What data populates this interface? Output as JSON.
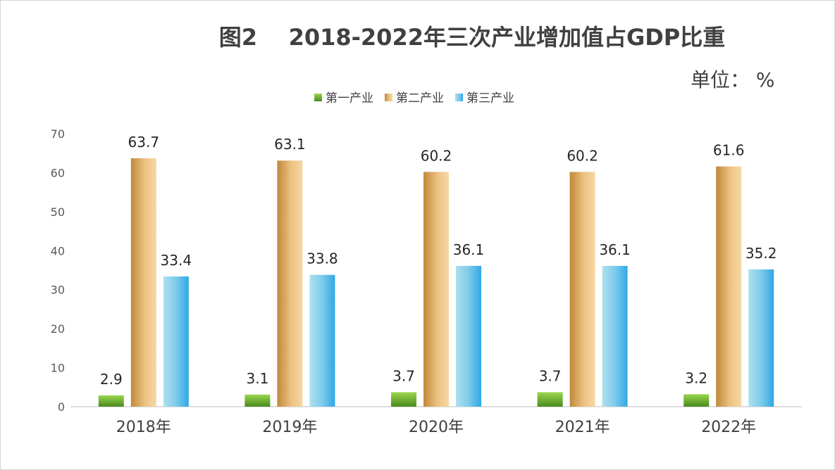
{
  "title": "图2    2018-2022年三次产业增加值占GDP比重",
  "unit": "单位： %",
  "chart_data": {
    "type": "bar",
    "title": "图2    2018-2022年三次产业增加值占GDP比重",
    "unit_label": "单位： %",
    "categories": [
      "2018年",
      "2019年",
      "2020年",
      "2021年",
      "2022年"
    ],
    "series": [
      {
        "name": "第一产业",
        "values": [
          2.9,
          3.1,
          3.7,
          3.7,
          3.2
        ],
        "color": "#6fae2e"
      },
      {
        "name": "第二产业",
        "values": [
          63.7,
          63.1,
          60.2,
          60.2,
          61.6
        ],
        "color": "#d9a45a"
      },
      {
        "name": "第三产业",
        "values": [
          33.4,
          33.8,
          36.1,
          36.1,
          35.2
        ],
        "color": "#4cb4e6"
      }
    ],
    "ylim": [
      0,
      70
    ],
    "yticks": [
      0,
      10,
      20,
      30,
      40,
      50,
      60,
      70
    ],
    "legend_position": "top-center",
    "grid": false,
    "data_labels": true
  }
}
